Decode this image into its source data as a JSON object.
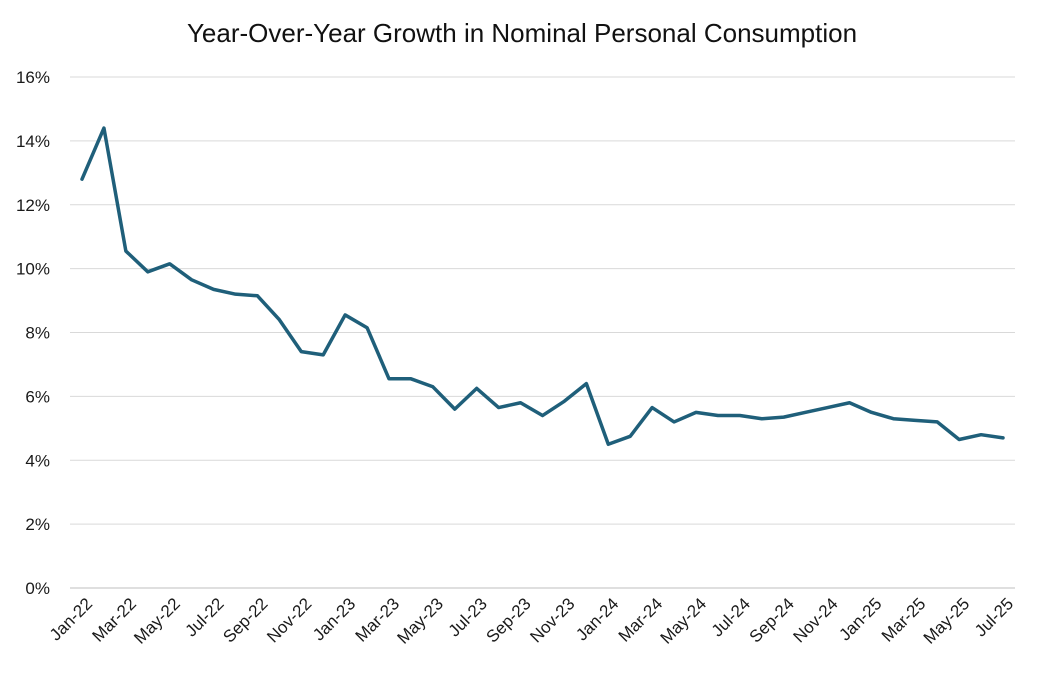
{
  "chart_data": {
    "type": "line",
    "title": "Year-Over-Year Growth in Nominal Personal Consumption",
    "xlabel": "",
    "ylabel": "",
    "ylim": [
      0,
      16
    ],
    "y_ticks": [
      0,
      2,
      4,
      6,
      8,
      10,
      12,
      14,
      16
    ],
    "y_tick_labels": [
      "0%",
      "2%",
      "4%",
      "6%",
      "8%",
      "10%",
      "12%",
      "14%",
      "16%"
    ],
    "grid": true,
    "legend": "none",
    "x_tick_labels": [
      "Jan-22",
      "Mar-22",
      "May-22",
      "Jul-22",
      "Sep-22",
      "Nov-22",
      "Jan-23",
      "Mar-23",
      "May-23",
      "Jul-23",
      "Sep-23",
      "Nov-23",
      "Jan-24",
      "Mar-24",
      "May-24",
      "Jul-24",
      "Sep-24",
      "Nov-24",
      "Jan-25",
      "Mar-25",
      "May-25",
      "Jul-25"
    ],
    "x_tick_every": 2,
    "x": [
      "Jan-22",
      "Feb-22",
      "Mar-22",
      "Apr-22",
      "May-22",
      "Jun-22",
      "Jul-22",
      "Aug-22",
      "Sep-22",
      "Oct-22",
      "Nov-22",
      "Dec-22",
      "Jan-23",
      "Feb-23",
      "Mar-23",
      "Apr-23",
      "May-23",
      "Jun-23",
      "Jul-23",
      "Aug-23",
      "Sep-23",
      "Oct-23",
      "Nov-23",
      "Dec-23",
      "Jan-24",
      "Feb-24",
      "Mar-24",
      "Apr-24",
      "May-24",
      "Jun-24",
      "Jul-24",
      "Aug-24",
      "Sep-24",
      "Oct-24",
      "Nov-24",
      "Dec-24",
      "Jan-25",
      "Feb-25",
      "Mar-25",
      "Apr-25",
      "May-25",
      "Jun-25",
      "Jul-25"
    ],
    "series": [
      {
        "name": "YoY Growth in Nominal Personal Consumption",
        "color": "#1f5f7a",
        "values": [
          12.8,
          14.4,
          10.55,
          9.9,
          10.15,
          9.65,
          9.35,
          9.2,
          9.15,
          8.4,
          7.4,
          7.3,
          8.55,
          8.15,
          6.55,
          6.55,
          6.3,
          5.6,
          6.25,
          5.65,
          5.8,
          5.4,
          5.85,
          6.4,
          4.5,
          4.75,
          5.65,
          5.2,
          5.5,
          5.4,
          5.4,
          5.3,
          5.35,
          5.5,
          5.65,
          5.8,
          5.5,
          5.3,
          5.25,
          5.2,
          4.65,
          4.8,
          4.7
        ]
      }
    ]
  }
}
